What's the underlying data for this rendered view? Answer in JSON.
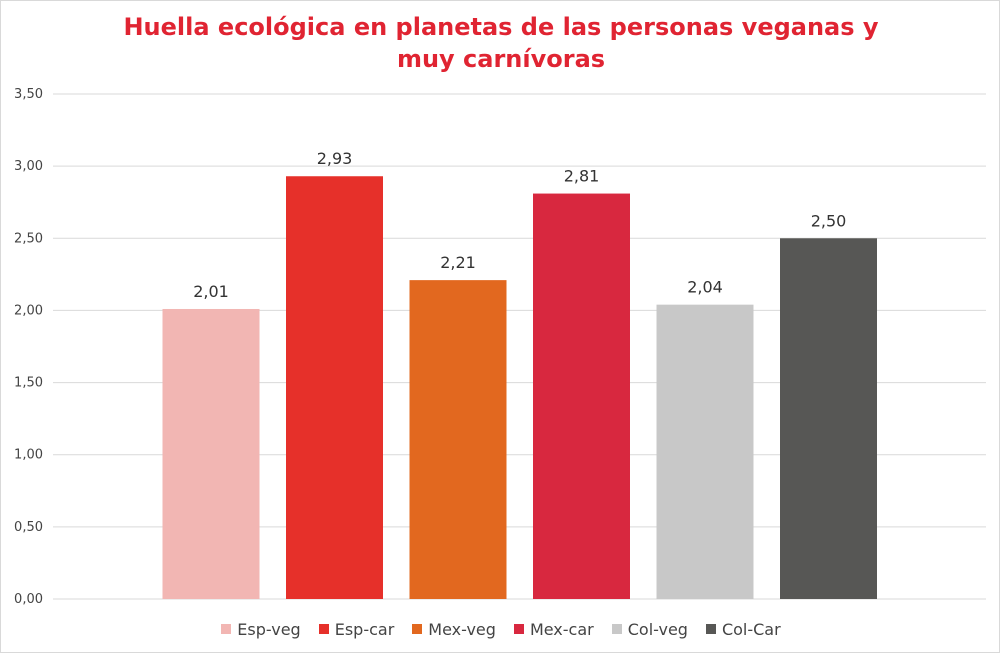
{
  "chart_data": {
    "type": "bar",
    "title_lines": [
      "Huella ecológica en planetas de las personas veganas y",
      "muy carnívoras"
    ],
    "categories": [
      "Esp-veg",
      "Esp-car",
      "Mex-veg",
      "Mex-car",
      "Col-veg",
      "Col-Car"
    ],
    "values": [
      2.01,
      2.93,
      2.21,
      2.81,
      2.04,
      2.5
    ],
    "value_labels": [
      "2,01",
      "2,93",
      "2,21",
      "2,81",
      "2,04",
      "2,50"
    ],
    "colors": [
      "#f2b6b3",
      "#e6302a",
      "#e2681f",
      "#d8283f",
      "#c8c8c8",
      "#575755"
    ],
    "ylim": [
      0,
      3.5
    ],
    "yticks": [
      0,
      0.5,
      1,
      1.5,
      2,
      2.5,
      3,
      3.5
    ],
    "ytick_labels": [
      "0,00",
      "0,50",
      "1,00",
      "1,50",
      "2,00",
      "2,50",
      "3,00",
      "3,50"
    ],
    "grid": true,
    "legend_position": "bottom",
    "title_color": "#e02432",
    "grid_color": "#d9d9d9"
  }
}
